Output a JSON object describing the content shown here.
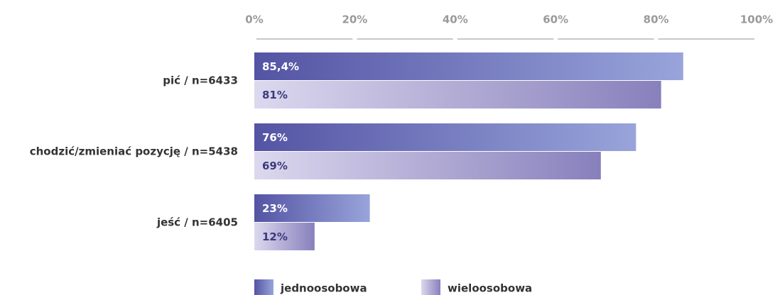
{
  "chart_data": {
    "type": "hbar",
    "categories": [
      "pić / n=6433",
      "chodzić/zmieniać pozycję / n=5438",
      "jeść / n=6405"
    ],
    "series": [
      {
        "name": "jednoosobowa",
        "color": "#5454a4",
        "values": [
          85.4,
          76,
          23
        ],
        "value_labels": [
          "85,4%",
          "76%",
          "23%"
        ]
      },
      {
        "name": "wieloosobowa",
        "color": "#dcd8ee",
        "values": [
          81,
          69,
          12
        ],
        "value_labels": [
          "81%",
          "69%",
          "12%"
        ]
      }
    ],
    "xlim": [
      0,
      100
    ],
    "xticks": [
      {
        "value": 0,
        "label": "0%"
      },
      {
        "value": 20,
        "label": "20%"
      },
      {
        "value": 40,
        "label": "40%"
      },
      {
        "value": 60,
        "label": "60%"
      },
      {
        "value": 80,
        "label": "80%"
      },
      {
        "value": 100,
        "label": "100%"
      }
    ],
    "legend": "bottom"
  }
}
